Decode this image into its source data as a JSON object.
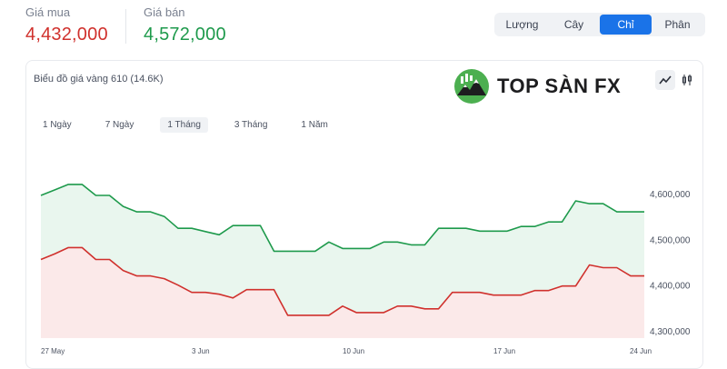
{
  "prices": {
    "buy_label": "Giá mua",
    "buy_value": "4,432,000",
    "sell_label": "Giá bán",
    "sell_value": "4,572,000"
  },
  "unit_tabs": [
    {
      "label": "Lượng",
      "active": false
    },
    {
      "label": "Cây",
      "active": false
    },
    {
      "label": "Chỉ",
      "active": true
    },
    {
      "label": "Phân",
      "active": false
    }
  ],
  "chart_card": {
    "title": "Biểu đồ giá vàng 610 (14.6K)",
    "logo_text": "TOP SÀN FX",
    "chart_type_icons": [
      "line-chart-icon",
      "candlestick-icon"
    ]
  },
  "ranges": [
    {
      "label": "1 Ngày",
      "active": false
    },
    {
      "label": "7 Ngày",
      "active": false
    },
    {
      "label": "1 Tháng",
      "active": true
    },
    {
      "label": "3 Tháng",
      "active": false
    },
    {
      "label": "1 Năm",
      "active": false
    }
  ],
  "colors": {
    "sell_line": "#1e9a4c",
    "sell_fill": "#e9f6ee",
    "buy_line": "#d0312d",
    "buy_fill": "#fbe9e9",
    "accent": "#1a73e8"
  },
  "chart_data": {
    "type": "line",
    "title": "",
    "xlabel": "",
    "ylabel": "",
    "ylim": [
      4290000,
      4640000
    ],
    "y_ticks": [
      "4,600,000",
      "4,500,000",
      "4,400,000",
      "4,300,000"
    ],
    "y_tick_values": [
      4600000,
      4500000,
      4400000,
      4300000
    ],
    "x_tick_labels": [
      "27 May",
      "3 Jun",
      "10 Jun",
      "17 Jun",
      "24 Jun"
    ],
    "x_tick_index": [
      0,
      7,
      14,
      21,
      28
    ],
    "series": [
      {
        "role": "sell",
        "values": [
          4598000,
          4610000,
          4622000,
          4622000,
          4598000,
          4598000,
          4574000,
          4562000,
          4562000,
          4552000,
          4526000,
          4526000,
          4519000,
          4512000,
          4532000,
          4532000,
          4532000,
          4476000,
          4476000,
          4476000,
          4476000,
          4496000,
          4482000,
          4482000,
          4482000,
          4496000,
          4496000,
          4490000,
          4490000,
          4526000,
          4526000,
          4526000,
          4520000,
          4520000,
          4520000,
          4530000,
          4530000,
          4540000,
          4540000,
          4586000,
          4580000,
          4580000,
          4562000,
          4562000,
          4562000
        ]
      },
      {
        "role": "buy",
        "values": [
          4458000,
          4470000,
          4484000,
          4484000,
          4458000,
          4458000,
          4434000,
          4422000,
          4422000,
          4416000,
          4402000,
          4386000,
          4386000,
          4382000,
          4374000,
          4392000,
          4392000,
          4392000,
          4336000,
          4336000,
          4336000,
          4336000,
          4356000,
          4342000,
          4342000,
          4342000,
          4356000,
          4356000,
          4350000,
          4350000,
          4386000,
          4386000,
          4386000,
          4380000,
          4380000,
          4380000,
          4390000,
          4390000,
          4400000,
          4400000,
          4446000,
          4440000,
          4440000,
          4422000,
          4422000
        ]
      }
    ]
  }
}
